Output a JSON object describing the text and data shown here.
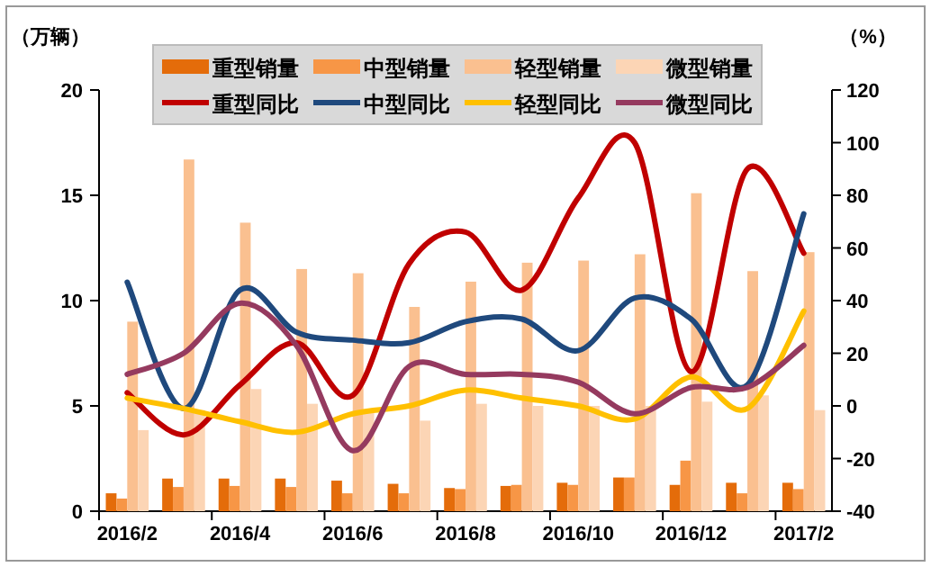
{
  "chart_data": {
    "type": "bar",
    "ylabel": "（万辆）",
    "y2label": "（%）",
    "categories": [
      "2016/2",
      null,
      "2016/4",
      null,
      "2016/6",
      null,
      "2016/8",
      null,
      "2016/10",
      null,
      "2016/12",
      null,
      "2017/2"
    ],
    "ylim": [
      0,
      20
    ],
    "yticks": [
      0,
      5,
      10,
      15,
      20
    ],
    "y2lim": [
      -40,
      120
    ],
    "y2ticks": [
      -40,
      -20,
      0,
      20,
      40,
      60,
      80,
      100,
      120
    ],
    "legend": "top",
    "grid": false,
    "marker": "none",
    "line_style": "solid",
    "series": [
      {
        "name": "重型销量",
        "color": "#e46c0a",
        "values": [
          0.85,
          1.55,
          1.55,
          1.55,
          1.45,
          1.3,
          1.1,
          1.2,
          1.35,
          1.6,
          1.25,
          1.35,
          1.35
        ]
      },
      {
        "name": "中型销量",
        "color": "#f79646",
        "values": [
          0.6,
          1.15,
          1.2,
          1.15,
          0.85,
          0.85,
          1.05,
          1.25,
          1.25,
          1.6,
          2.4,
          0.85,
          1.05
        ]
      },
      {
        "name": "轻型销量",
        "color": "#fac090",
        "values": [
          9.0,
          16.7,
          13.7,
          11.5,
          11.3,
          9.7,
          10.9,
          11.8,
          11.9,
          12.2,
          15.1,
          11.4,
          12.3
        ]
      },
      {
        "name": "微型销量",
        "color": "#fcd5b5",
        "values": [
          3.85,
          4.8,
          5.8,
          5.1,
          4.8,
          4.3,
          5.1,
          5.0,
          5.0,
          5.0,
          5.2,
          5.5,
          4.8
        ]
      },
      {
        "name": "重型同比",
        "type": "line",
        "axis": "y2",
        "color": "#c00000",
        "values": [
          5,
          -11,
          8,
          24,
          4,
          54,
          66,
          44,
          79,
          100,
          13,
          90,
          58
        ]
      },
      {
        "name": "中型同比",
        "type": "line",
        "axis": "y2",
        "color": "#1f497d",
        "values": [
          47,
          -1,
          44,
          28,
          25,
          24,
          32,
          33,
          21,
          41,
          33,
          8,
          73
        ]
      },
      {
        "name": "轻型同比",
        "type": "line",
        "axis": "y2",
        "color": "#ffc000",
        "values": [
          3,
          -1,
          -6,
          -10,
          -3,
          0,
          6,
          3,
          0,
          -5,
          11,
          -1,
          36
        ]
      },
      {
        "name": "微型同比",
        "type": "line",
        "axis": "y2",
        "color": "#953a5f",
        "values": [
          12,
          20,
          39,
          23,
          -17,
          15,
          12,
          12,
          9,
          -3,
          7,
          7,
          23
        ]
      }
    ]
  }
}
